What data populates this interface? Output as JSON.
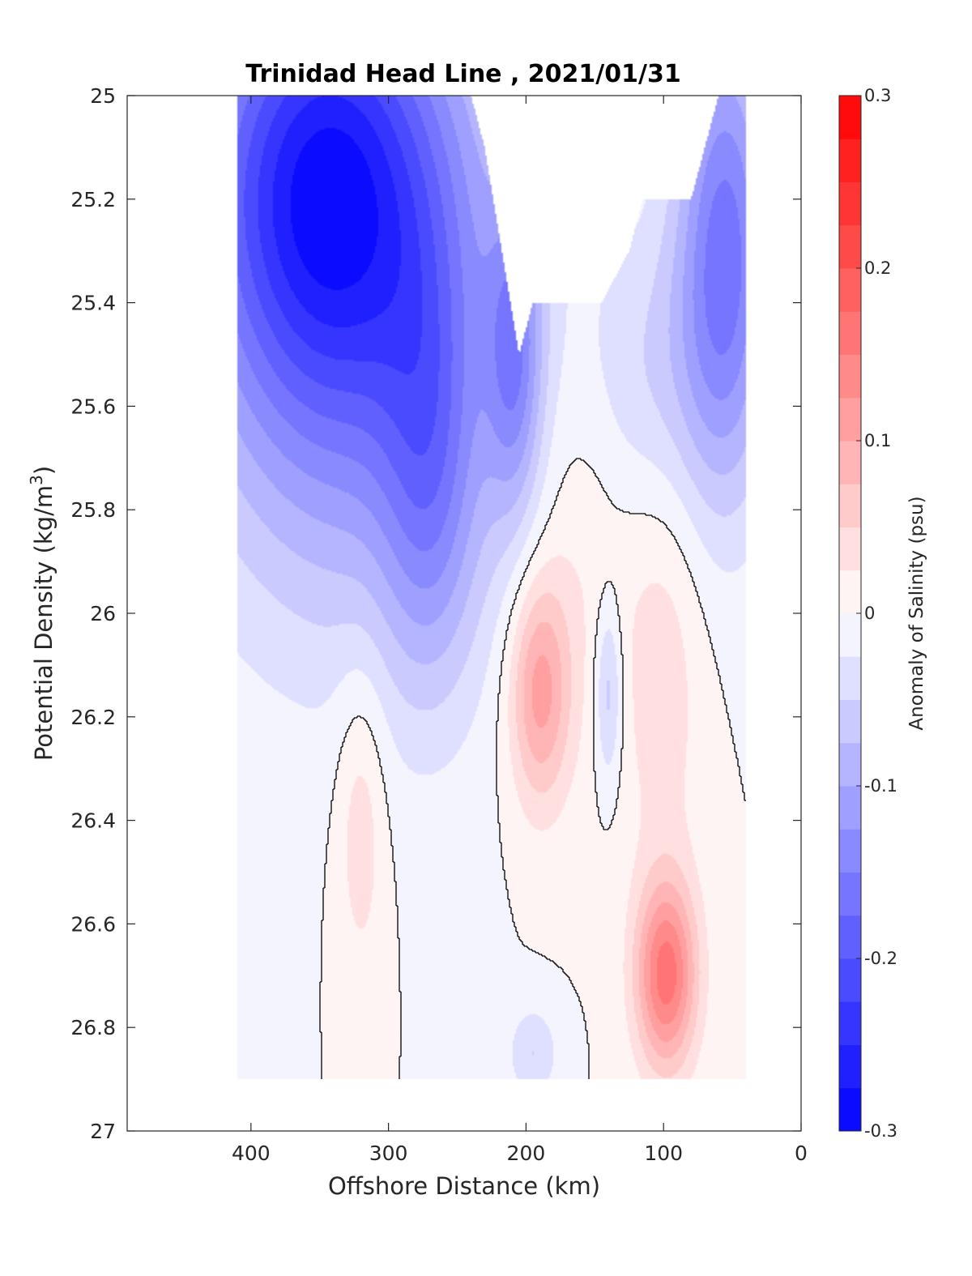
{
  "chart_data": {
    "type": "heatmap",
    "subtype": "filled-contour",
    "title": "Trinidad Head Line , 2021/01/31",
    "xlabel": "Offshore Distance (km)",
    "ylabel": "Potential Density (kg/m",
    "ylabel_sup": "3",
    "ylabel_close": ")",
    "colorbar_label": "Anomaly of Salinity (psu)",
    "xlim": [
      490,
      0
    ],
    "x_reversed": true,
    "ylim": [
      25,
      27
    ],
    "y_reversed": true,
    "xticks": [
      400,
      300,
      200,
      100,
      0
    ],
    "xtick_labels": [
      "400",
      "300",
      "200",
      "100",
      "0"
    ],
    "yticks": [
      25,
      25.2,
      25.4,
      25.6,
      25.8,
      26,
      26.2,
      26.4,
      26.6,
      26.8,
      27
    ],
    "ytick_labels": [
      "25",
      "25.2",
      "25.4",
      "25.6",
      "25.8",
      "26",
      "26.2",
      "26.4",
      "26.6",
      "26.8",
      "27"
    ],
    "colorbar": {
      "range": [
        -0.3,
        0.3
      ],
      "ticks": [
        0.3,
        0.2,
        0.1,
        0,
        -0.1,
        -0.2,
        -0.3
      ],
      "tick_labels": [
        "0.3",
        "0.2",
        "0.1",
        "0",
        "-0.1",
        "-0.2",
        "-0.3"
      ],
      "levels": 24,
      "colormap": "blue-white-red",
      "low_color": "#0000ff",
      "mid_color": "#ffffff",
      "high_color": "#ff0000"
    },
    "data_extent": {
      "x": [
        40,
        410
      ],
      "y": [
        25,
        26.9
      ]
    },
    "grid": false,
    "zero_contour_color": "#000000",
    "fields": [
      {
        "name": "negative-upper-offshore",
        "x": 345,
        "y": 25.15,
        "value": -0.24,
        "sx": 95,
        "sy": 0.45
      },
      {
        "name": "negative-offshore-belt",
        "x": 320,
        "y": 25.55,
        "value": -0.1,
        "sx": 120,
        "sy": 0.55
      },
      {
        "name": "negative-mid-offshore",
        "x": 270,
        "y": 25.75,
        "value": -0.09,
        "sx": 35,
        "sy": 0.4
      },
      {
        "name": "negative-notch",
        "x": 208,
        "y": 25.5,
        "value": -0.11,
        "sx": 20,
        "sy": 0.3
      },
      {
        "name": "negative-nearshore-upper",
        "x": 55,
        "y": 25.3,
        "value": -0.16,
        "sx": 35,
        "sy": 0.45
      },
      {
        "name": "negative-shelf-belt",
        "x": 110,
        "y": 25.55,
        "value": -0.05,
        "sx": 55,
        "sy": 0.3
      },
      {
        "name": "positive-core-upper",
        "x": 190,
        "y": 26.15,
        "value": 0.11,
        "sx": 22,
        "sy": 0.22
      },
      {
        "name": "positive-column",
        "x": 160,
        "y": 25.8,
        "value": 0.035,
        "sx": 40,
        "sy": 0.45
      },
      {
        "name": "positive-core-deep",
        "x": 98,
        "y": 26.7,
        "value": 0.16,
        "sx": 22,
        "sy": 0.18
      },
      {
        "name": "positive-ridge",
        "x": 100,
        "y": 26.1,
        "value": 0.04,
        "sx": 30,
        "sy": 0.45
      },
      {
        "name": "positive-offshore-lens",
        "x": 320,
        "y": 26.4,
        "value": 0.045,
        "sx": 18,
        "sy": 0.3
      },
      {
        "name": "negative-inner-pocket",
        "x": 140,
        "y": 26.15,
        "value": -0.07,
        "sx": 10,
        "sy": 0.18
      },
      {
        "name": "negative-deep-pocket",
        "x": 195,
        "y": 26.85,
        "value": -0.05,
        "sx": 18,
        "sy": 0.09
      }
    ]
  }
}
